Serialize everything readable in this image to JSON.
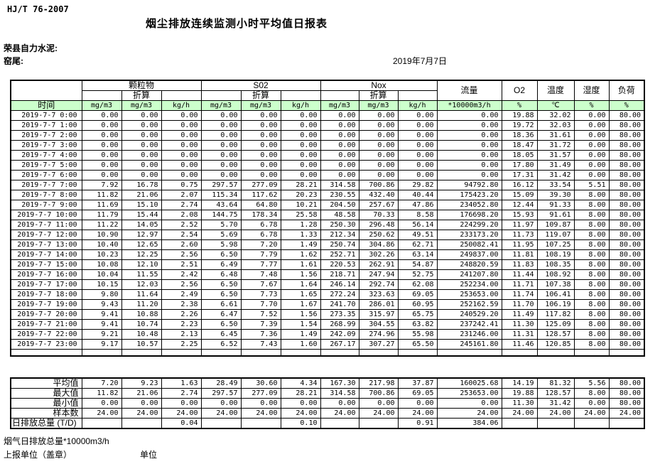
{
  "page": {
    "standard_code": "HJ/T  76-2007",
    "title": "烟尘排放连续监测小时平均值日报表",
    "company": "荣县自力水泥:",
    "location": "窑尾:",
    "date": "2019年7月7日"
  },
  "colors": {
    "header_green": "#ccffcc"
  },
  "table": {
    "time_header": "时间",
    "conv_label": "折算",
    "groups": [
      {
        "label": "颗粒物",
        "span": 3
      },
      {
        "label": "S02",
        "span": 3
      },
      {
        "label": "Nox",
        "span": 3
      }
    ],
    "single_columns": [
      "流量",
      "O2",
      "温度",
      "湿度",
      "负荷"
    ],
    "units": [
      "mg/m3",
      "mg/m3",
      "kg/h",
      "mg/m3",
      "mg/m3",
      "kg/h",
      "mg/m3",
      "mg/m3",
      "kg/h",
      "*10000m3/h",
      "%",
      "℃",
      "%",
      "%"
    ],
    "rows": [
      {
        "time": "2019-7-7  0:00",
        "values": [
          "0.00",
          "0.00",
          "0.00",
          "0.00",
          "0.00",
          "0.00",
          "0.00",
          "0.00",
          "0.00",
          "0.00",
          "19.88",
          "32.02",
          "0.00",
          "80.00"
        ]
      },
      {
        "time": "2019-7-7  1:00",
        "values": [
          "0.00",
          "0.00",
          "0.00",
          "0.00",
          "0.00",
          "0.00",
          "0.00",
          "0.00",
          "0.00",
          "0.00",
          "19.72",
          "32.03",
          "0.00",
          "80.00"
        ]
      },
      {
        "time": "2019-7-7  2:00",
        "values": [
          "0.00",
          "0.00",
          "0.00",
          "0.00",
          "0.00",
          "0.00",
          "0.00",
          "0.00",
          "0.00",
          "0.00",
          "18.36",
          "31.61",
          "0.00",
          "80.00"
        ]
      },
      {
        "time": "2019-7-7  3:00",
        "values": [
          "0.00",
          "0.00",
          "0.00",
          "0.00",
          "0.00",
          "0.00",
          "0.00",
          "0.00",
          "0.00",
          "0.00",
          "18.47",
          "31.72",
          "0.00",
          "80.00"
        ]
      },
      {
        "time": "2019-7-7  4:00",
        "values": [
          "0.00",
          "0.00",
          "0.00",
          "0.00",
          "0.00",
          "0.00",
          "0.00",
          "0.00",
          "0.00",
          "0.00",
          "18.05",
          "31.57",
          "0.00",
          "80.00"
        ]
      },
      {
        "time": "2019-7-7  5:00",
        "values": [
          "0.00",
          "0.00",
          "0.00",
          "0.00",
          "0.00",
          "0.00",
          "0.00",
          "0.00",
          "0.00",
          "0.00",
          "17.80",
          "31.49",
          "0.00",
          "80.00"
        ]
      },
      {
        "time": "2019-7-7  6:00",
        "values": [
          "0.00",
          "0.00",
          "0.00",
          "0.00",
          "0.00",
          "0.00",
          "0.00",
          "0.00",
          "0.00",
          "0.00",
          "17.31",
          "31.42",
          "0.00",
          "80.00"
        ]
      },
      {
        "time": "2019-7-7  7:00",
        "values": [
          "7.92",
          "16.78",
          "0.75",
          "297.57",
          "277.09",
          "28.21",
          "314.58",
          "700.86",
          "29.82",
          "94792.80",
          "16.12",
          "33.54",
          "5.51",
          "80.00"
        ]
      },
      {
        "time": "2019-7-7  8:00",
        "values": [
          "11.82",
          "21.06",
          "2.07",
          "115.34",
          "117.62",
          "20.23",
          "230.55",
          "432.40",
          "40.44",
          "175423.20",
          "15.09",
          "39.30",
          "8.00",
          "80.00"
        ]
      },
      {
        "time": "2019-7-7  9:00",
        "values": [
          "11.69",
          "15.10",
          "2.74",
          "43.64",
          "64.80",
          "10.21",
          "204.50",
          "257.67",
          "47.86",
          "234052.80",
          "12.44",
          "91.33",
          "8.00",
          "80.00"
        ]
      },
      {
        "time": "2019-7-7 10:00",
        "values": [
          "11.79",
          "15.44",
          "2.08",
          "144.75",
          "178.34",
          "25.58",
          "48.58",
          "70.33",
          "8.58",
          "176698.20",
          "15.93",
          "91.61",
          "8.00",
          "80.00"
        ]
      },
      {
        "time": "2019-7-7 11:00",
        "values": [
          "11.22",
          "14.05",
          "2.52",
          "5.70",
          "6.78",
          "1.28",
          "250.30",
          "296.48",
          "56.14",
          "224299.20",
          "11.97",
          "109.87",
          "8.00",
          "80.00"
        ]
      },
      {
        "time": "2019-7-7 12:00",
        "values": [
          "10.90",
          "12.97",
          "2.54",
          "5.69",
          "6.78",
          "1.33",
          "212.34",
          "250.62",
          "49.51",
          "233173.20",
          "11.73",
          "119.07",
          "8.00",
          "80.00"
        ]
      },
      {
        "time": "2019-7-7 13:00",
        "values": [
          "10.40",
          "12.65",
          "2.60",
          "5.98",
          "7.20",
          "1.49",
          "250.74",
          "304.86",
          "62.71",
          "250082.41",
          "11.95",
          "107.25",
          "8.00",
          "80.00"
        ]
      },
      {
        "time": "2019-7-7 14:00",
        "values": [
          "10.23",
          "12.25",
          "2.56",
          "6.50",
          "7.79",
          "1.62",
          "252.71",
          "302.26",
          "63.14",
          "249837.00",
          "11.81",
          "108.19",
          "8.00",
          "80.00"
        ]
      },
      {
        "time": "2019-7-7 15:00",
        "values": [
          "10.08",
          "12.10",
          "2.51",
          "6.49",
          "7.77",
          "1.61",
          "220.53",
          "262.91",
          "54.87",
          "248820.59",
          "11.83",
          "108.35",
          "8.00",
          "80.00"
        ]
      },
      {
        "time": "2019-7-7 16:00",
        "values": [
          "10.04",
          "11.55",
          "2.42",
          "6.48",
          "7.48",
          "1.56",
          "218.71",
          "247.94",
          "52.75",
          "241207.80",
          "11.44",
          "108.92",
          "8.00",
          "80.00"
        ]
      },
      {
        "time": "2019-7-7 17:00",
        "values": [
          "10.15",
          "12.03",
          "2.56",
          "6.50",
          "7.67",
          "1.64",
          "246.14",
          "292.74",
          "62.08",
          "252234.00",
          "11.71",
          "107.38",
          "8.00",
          "80.00"
        ]
      },
      {
        "time": "2019-7-7 18:00",
        "values": [
          "9.80",
          "11.64",
          "2.49",
          "6.50",
          "7.73",
          "1.65",
          "272.24",
          "323.63",
          "69.05",
          "253653.00",
          "11.74",
          "106.41",
          "8.00",
          "80.00"
        ]
      },
      {
        "time": "2019-7-7 19:00",
        "values": [
          "9.43",
          "11.20",
          "2.38",
          "6.61",
          "7.70",
          "1.67",
          "241.70",
          "286.01",
          "60.95",
          "252162.59",
          "11.70",
          "106.19",
          "8.00",
          "80.00"
        ]
      },
      {
        "time": "2019-7-7 20:00",
        "values": [
          "9.41",
          "10.88",
          "2.26",
          "6.47",
          "7.52",
          "1.56",
          "273.35",
          "315.97",
          "65.75",
          "240529.20",
          "11.49",
          "117.82",
          "8.00",
          "80.00"
        ]
      },
      {
        "time": "2019-7-7 21:00",
        "values": [
          "9.41",
          "10.74",
          "2.23",
          "6.50",
          "7.39",
          "1.54",
          "268.99",
          "304.55",
          "63.82",
          "237242.41",
          "11.30",
          "125.09",
          "8.00",
          "80.00"
        ]
      },
      {
        "time": "2019-7-7 22:00",
        "values": [
          "9.21",
          "10.48",
          "2.13",
          "6.45",
          "7.36",
          "1.49",
          "242.09",
          "274.96",
          "55.98",
          "231246.00",
          "11.31",
          "128.57",
          "8.00",
          "80.00"
        ]
      },
      {
        "time": "2019-7-7 23:00",
        "values": [
          "9.17",
          "10.57",
          "2.25",
          "6.52",
          "7.43",
          "1.60",
          "267.17",
          "307.27",
          "65.50",
          "245161.80",
          "11.46",
          "120.85",
          "8.00",
          "80.00"
        ]
      }
    ],
    "summary": [
      {
        "label": "平均值",
        "values": [
          "7.20",
          "9.23",
          "1.63",
          "28.49",
          "30.60",
          "4.34",
          "167.30",
          "217.98",
          "37.87",
          "160025.68",
          "14.19",
          "81.32",
          "5.56",
          "80.00"
        ]
      },
      {
        "label": "最大值",
        "values": [
          "11.82",
          "21.06",
          "2.74",
          "297.57",
          "277.09",
          "28.21",
          "314.58",
          "700.86",
          "69.05",
          "253653.00",
          "19.88",
          "128.57",
          "8.00",
          "80.00"
        ]
      },
      {
        "label": "最小值",
        "values": [
          "0.00",
          "0.00",
          "0.00",
          "0.00",
          "0.00",
          "0.00",
          "0.00",
          "0.00",
          "0.00",
          "0.00",
          "11.30",
          "31.42",
          "0.00",
          "80.00"
        ]
      },
      {
        "label": "样本数",
        "values": [
          "24.00",
          "24.00",
          "24.00",
          "24.00",
          "24.00",
          "24.00",
          "24.00",
          "24.00",
          "24.00",
          "24.00",
          "24.00",
          "24.00",
          "24.00",
          "24.00"
        ]
      },
      {
        "label": "日排放总量 (T/D)",
        "values": [
          "",
          "",
          "0.04",
          "",
          "",
          "0.10",
          "",
          "",
          "0.91",
          "384.06",
          "",
          "",
          "",
          ""
        ]
      }
    ]
  },
  "footer": {
    "note1": "烟气日排放总量*10000m3/h",
    "note2": "上报单位（盖章）",
    "note3": "单位"
  }
}
